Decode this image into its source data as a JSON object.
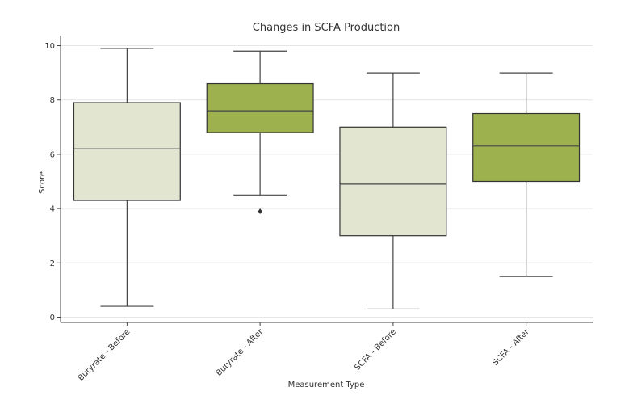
{
  "chart_data": {
    "type": "box",
    "title": "Changes in SCFA Production",
    "xlabel": "Measurement Type",
    "ylabel": "Score",
    "ylim": [
      0,
      10
    ],
    "yticks": [
      0,
      2,
      4,
      6,
      8,
      10
    ],
    "grid": true,
    "categories": [
      "Butyrate - Before",
      "Butyrate - After",
      "SCFA - Before",
      "SCFA - After"
    ],
    "boxes": [
      {
        "category": "Butyrate - Before",
        "whisker_low": 0.4,
        "q1": 4.3,
        "median": 6.2,
        "q3": 7.9,
        "whisker_high": 9.9,
        "outliers": [],
        "color": "#e2e6d0"
      },
      {
        "category": "Butyrate - After",
        "whisker_low": 4.5,
        "q1": 6.8,
        "median": 7.6,
        "q3": 8.6,
        "whisker_high": 9.8,
        "outliers": [
          3.9
        ],
        "color": "#9db24f"
      },
      {
        "category": "SCFA - Before",
        "whisker_low": 0.3,
        "q1": 3.0,
        "median": 4.9,
        "q3": 7.0,
        "whisker_high": 9.0,
        "outliers": [],
        "color": "#e2e6d0"
      },
      {
        "category": "SCFA - After",
        "whisker_low": 1.5,
        "q1": 5.0,
        "median": 6.3,
        "q3": 7.5,
        "whisker_high": 9.0,
        "outliers": [],
        "color": "#9db24f"
      }
    ]
  }
}
